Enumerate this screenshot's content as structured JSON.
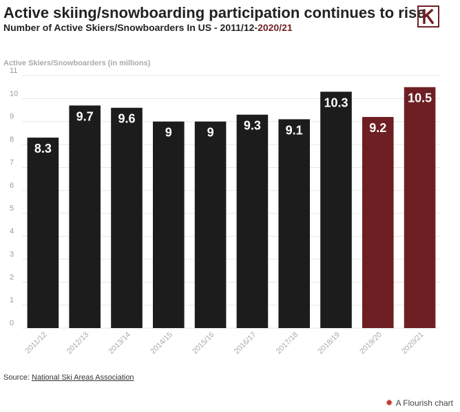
{
  "title": "Active skiing/snowboarding participation continues to rise",
  "subtitle_prefix": "Number of Active Skiers/Snowboarders In US - 2011/12-",
  "subtitle_highlight": "2020/21",
  "source_label": "Source: ",
  "source_link": "National Ski Areas Association",
  "credit": "A Flourish chart",
  "logo_icon": "k-logo-icon",
  "colors": {
    "normal": "#1c1c1c",
    "highlight": "#6e1f23",
    "grid": "#e6e6e6"
  },
  "chart_data": {
    "type": "bar",
    "ylabel": "Active Skiers/Snowboarders (in millions)",
    "ylim": [
      0,
      11
    ],
    "yticks": [
      0,
      1,
      2,
      3,
      4,
      5,
      6,
      7,
      8,
      9,
      10,
      11
    ],
    "categories": [
      "2011/12",
      "2012/13",
      "2013/14",
      "2014/15",
      "2015/16",
      "2016/17",
      "2017/18",
      "2018/19",
      "2019/20",
      "2020/21"
    ],
    "values": [
      8.3,
      9.7,
      9.6,
      9,
      9,
      9.3,
      9.1,
      10.3,
      9.2,
      10.5
    ],
    "labels": [
      "8.3",
      "9.7",
      "9.6",
      "9",
      "9",
      "9.3",
      "9.1",
      "10.3",
      "9.2",
      "10.5"
    ],
    "highlighted": [
      false,
      false,
      false,
      false,
      false,
      false,
      false,
      false,
      true,
      true
    ],
    "grid": true
  }
}
